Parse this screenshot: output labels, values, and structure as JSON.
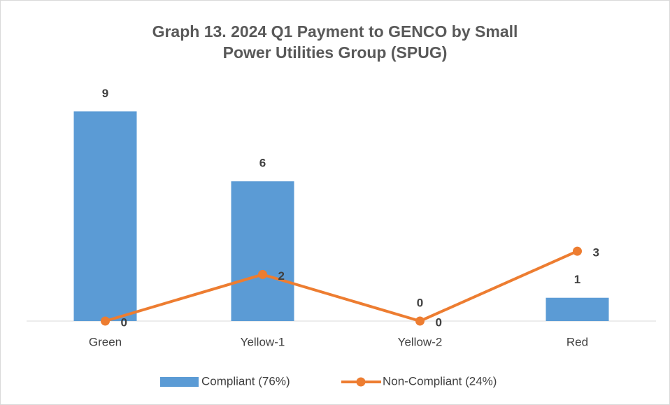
{
  "chart_data": {
    "type": "bar_line",
    "title": "Graph 13. 2024 Q1 Payment to GENCO by Small Power Utilities Group (SPUG)",
    "categories": [
      "Green",
      "Yellow-1",
      "Yellow-2",
      "Red"
    ],
    "series": [
      {
        "name": "Compliant (76%)",
        "type": "bar",
        "color": "#5b9bd5",
        "values": [
          9,
          6,
          0,
          1
        ]
      },
      {
        "name": "Non-Compliant (24%)",
        "type": "line",
        "color": "#ed7d31",
        "values": [
          0,
          2,
          0,
          3
        ]
      }
    ],
    "legend": "bottom"
  }
}
